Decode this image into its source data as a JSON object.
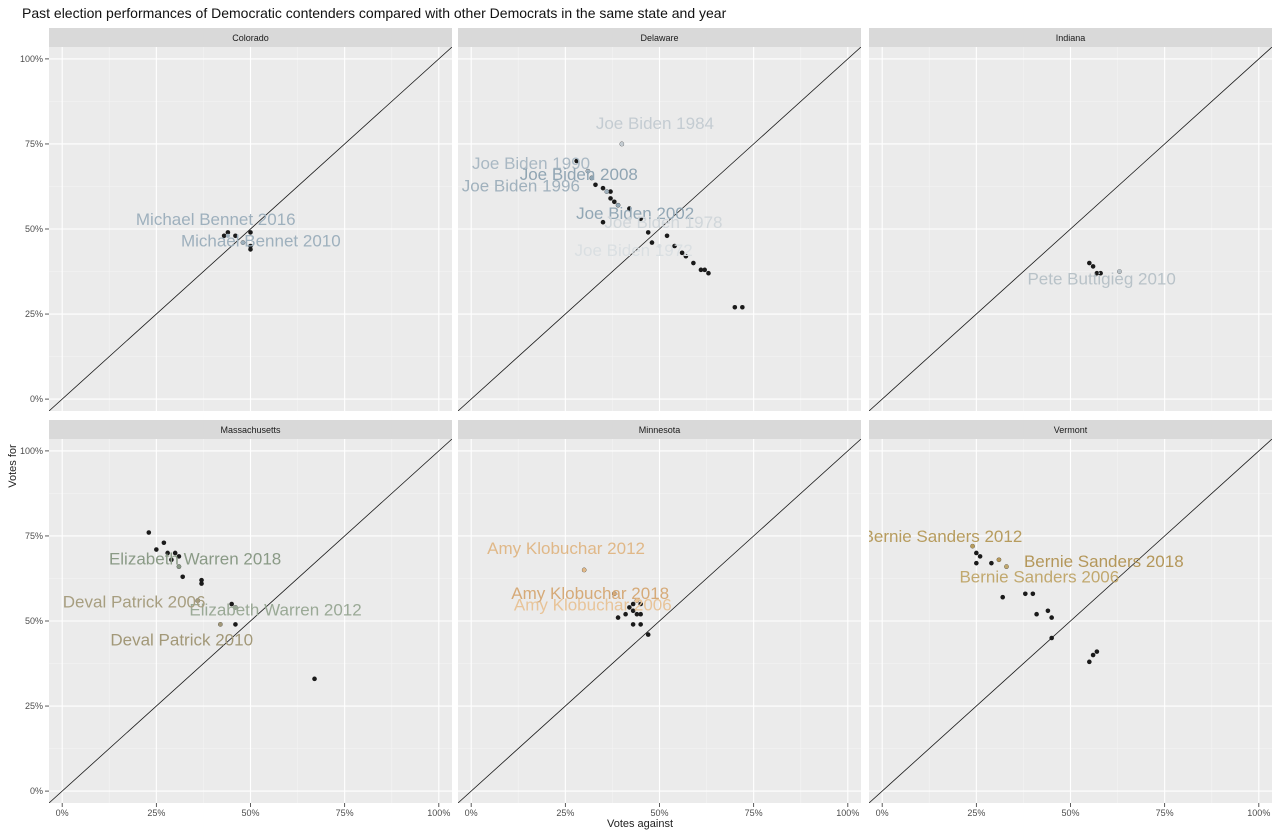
{
  "chart_data": {
    "type": "scatter",
    "title": "Past election performances of Democratic contenders compared with other Democrats in the same state and year",
    "xlabel": "Votes against",
    "ylabel": "Votes for",
    "xlim": [
      0,
      1
    ],
    "ylim": [
      0,
      1
    ],
    "x_ticks": [
      "0%",
      "25%",
      "50%",
      "75%",
      "100%"
    ],
    "y_ticks": [
      "0%",
      "25%",
      "50%",
      "75%",
      "100%"
    ],
    "grid": true,
    "reference_line": "y = x",
    "panels": [
      {
        "state": "Colorado",
        "points": [
          {
            "x": 0.43,
            "y": 0.48
          },
          {
            "x": 0.44,
            "y": 0.49
          },
          {
            "x": 0.5,
            "y": 0.49
          },
          {
            "x": 0.5,
            "y": 0.45
          },
          {
            "x": 0.5,
            "y": 0.44
          },
          {
            "x": 0.46,
            "y": 0.48
          },
          {
            "x": 0.48,
            "y": 0.46
          }
        ],
        "labels": [
          {
            "text": "Michael Bennet 2016",
            "x": 0.44,
            "y": 0.48,
            "color": "#9eb0bd"
          },
          {
            "text": "Michael Bennet 2010",
            "x": 0.48,
            "y": 0.46,
            "color": "#9eb0bd"
          }
        ]
      },
      {
        "state": "Delaware",
        "points": [
          {
            "x": 0.28,
            "y": 0.7
          },
          {
            "x": 0.31,
            "y": 0.67
          },
          {
            "x": 0.32,
            "y": 0.65
          },
          {
            "x": 0.33,
            "y": 0.63
          },
          {
            "x": 0.35,
            "y": 0.62
          },
          {
            "x": 0.36,
            "y": 0.61
          },
          {
            "x": 0.37,
            "y": 0.61
          },
          {
            "x": 0.37,
            "y": 0.59
          },
          {
            "x": 0.38,
            "y": 0.58
          },
          {
            "x": 0.39,
            "y": 0.57
          },
          {
            "x": 0.35,
            "y": 0.52
          },
          {
            "x": 0.4,
            "y": 0.75
          },
          {
            "x": 0.42,
            "y": 0.56
          },
          {
            "x": 0.45,
            "y": 0.53
          },
          {
            "x": 0.47,
            "y": 0.49
          },
          {
            "x": 0.48,
            "y": 0.46
          },
          {
            "x": 0.52,
            "y": 0.48
          },
          {
            "x": 0.54,
            "y": 0.45
          },
          {
            "x": 0.56,
            "y": 0.43
          },
          {
            "x": 0.57,
            "y": 0.42
          },
          {
            "x": 0.59,
            "y": 0.4
          },
          {
            "x": 0.61,
            "y": 0.38
          },
          {
            "x": 0.62,
            "y": 0.38
          },
          {
            "x": 0.63,
            "y": 0.37
          },
          {
            "x": 0.7,
            "y": 0.27
          },
          {
            "x": 0.72,
            "y": 0.27
          }
        ],
        "labels": [
          {
            "text": "Joe Biden 1984",
            "x": 0.4,
            "y": 0.75,
            "color": "#c4ccd2"
          },
          {
            "text": "Joe Biden 1990",
            "x": 0.31,
            "y": 0.67,
            "color": "#a9b8c3"
          },
          {
            "text": "Joe Biden 2008",
            "x": 0.32,
            "y": 0.65,
            "color": "#90a5b3"
          },
          {
            "text": "Joe Biden 1996",
            "x": 0.36,
            "y": 0.61,
            "color": "#a0b1bd"
          },
          {
            "text": "Joe Biden 2002",
            "x": 0.39,
            "y": 0.57,
            "color": "#92a7b5"
          },
          {
            "text": "Joe Biden 1978",
            "x": 0.42,
            "y": 0.53,
            "color": "#d0d6da"
          },
          {
            "text": "Joe Biden 1972",
            "x": 0.5,
            "y": 0.45,
            "color": "#dadfe2"
          }
        ]
      },
      {
        "state": "Indiana",
        "points": [
          {
            "x": 0.55,
            "y": 0.4
          },
          {
            "x": 0.56,
            "y": 0.39
          },
          {
            "x": 0.57,
            "y": 0.37
          },
          {
            "x": 0.58,
            "y": 0.37
          },
          {
            "x": 0.63,
            "y": 0.375
          }
        ],
        "labels": [
          {
            "text": "Pete Buttigieg 2010",
            "x": 0.63,
            "y": 0.375,
            "color": "#b8c2c8"
          }
        ]
      },
      {
        "state": "Massachusetts",
        "points": [
          {
            "x": 0.23,
            "y": 0.76
          },
          {
            "x": 0.25,
            "y": 0.71
          },
          {
            "x": 0.27,
            "y": 0.73
          },
          {
            "x": 0.28,
            "y": 0.7
          },
          {
            "x": 0.29,
            "y": 0.68
          },
          {
            "x": 0.3,
            "y": 0.7
          },
          {
            "x": 0.31,
            "y": 0.69
          },
          {
            "x": 0.31,
            "y": 0.66
          },
          {
            "x": 0.32,
            "y": 0.63
          },
          {
            "x": 0.37,
            "y": 0.62
          },
          {
            "x": 0.37,
            "y": 0.61
          },
          {
            "x": 0.36,
            "y": 0.56
          },
          {
            "x": 0.45,
            "y": 0.55
          },
          {
            "x": 0.46,
            "y": 0.54
          },
          {
            "x": 0.42,
            "y": 0.49
          },
          {
            "x": 0.46,
            "y": 0.49
          },
          {
            "x": 0.67,
            "y": 0.33
          }
        ],
        "labels": [
          {
            "text": "Elizabeth Warren 2018",
            "x": 0.31,
            "y": 0.66,
            "color": "#8a9a86"
          },
          {
            "text": "Elizabeth Warren 2012",
            "x": 0.46,
            "y": 0.54,
            "color": "#9aa996"
          },
          {
            "text": "Deval Patrick 2006",
            "x": 0.36,
            "y": 0.56,
            "color": "#a79e80"
          },
          {
            "text": "Deval Patrick 2010",
            "x": 0.42,
            "y": 0.49,
            "color": "#a29878"
          }
        ]
      },
      {
        "state": "Minnesota",
        "points": [
          {
            "x": 0.3,
            "y": 0.65
          },
          {
            "x": 0.38,
            "y": 0.58
          },
          {
            "x": 0.39,
            "y": 0.51
          },
          {
            "x": 0.41,
            "y": 0.52
          },
          {
            "x": 0.42,
            "y": 0.54
          },
          {
            "x": 0.43,
            "y": 0.55
          },
          {
            "x": 0.44,
            "y": 0.56
          },
          {
            "x": 0.45,
            "y": 0.55
          },
          {
            "x": 0.43,
            "y": 0.53
          },
          {
            "x": 0.44,
            "y": 0.52
          },
          {
            "x": 0.45,
            "y": 0.52
          },
          {
            "x": 0.43,
            "y": 0.49
          },
          {
            "x": 0.45,
            "y": 0.49
          },
          {
            "x": 0.47,
            "y": 0.46
          }
        ],
        "labels": [
          {
            "text": "Amy Klobuchar 2012",
            "x": 0.3,
            "y": 0.65,
            "color": "#e0b888"
          },
          {
            "text": "Amy Klobuchar 2018",
            "x": 0.38,
            "y": 0.58,
            "color": "#d6aa78"
          },
          {
            "text": "Amy Klobuchar 2006",
            "x": 0.44,
            "y": 0.56,
            "color": "#e8c499"
          }
        ]
      },
      {
        "state": "Vermont",
        "points": [
          {
            "x": 0.24,
            "y": 0.72
          },
          {
            "x": 0.25,
            "y": 0.7
          },
          {
            "x": 0.26,
            "y": 0.69
          },
          {
            "x": 0.25,
            "y": 0.67
          },
          {
            "x": 0.29,
            "y": 0.67
          },
          {
            "x": 0.31,
            "y": 0.68
          },
          {
            "x": 0.33,
            "y": 0.66
          },
          {
            "x": 0.32,
            "y": 0.57
          },
          {
            "x": 0.38,
            "y": 0.58
          },
          {
            "x": 0.4,
            "y": 0.58
          },
          {
            "x": 0.41,
            "y": 0.52
          },
          {
            "x": 0.44,
            "y": 0.53
          },
          {
            "x": 0.45,
            "y": 0.51
          },
          {
            "x": 0.45,
            "y": 0.45
          },
          {
            "x": 0.55,
            "y": 0.38
          },
          {
            "x": 0.56,
            "y": 0.4
          },
          {
            "x": 0.57,
            "y": 0.41
          }
        ],
        "labels": [
          {
            "text": "Bernie Sanders 2012",
            "x": 0.24,
            "y": 0.72,
            "color": "#b79c5e"
          },
          {
            "text": "Bernie Sanders 2018",
            "x": 0.31,
            "y": 0.68,
            "color": "#b4975a"
          },
          {
            "text": "Bernie Sanders 2006",
            "x": 0.33,
            "y": 0.66,
            "color": "#c1a86e"
          }
        ]
      }
    ]
  }
}
